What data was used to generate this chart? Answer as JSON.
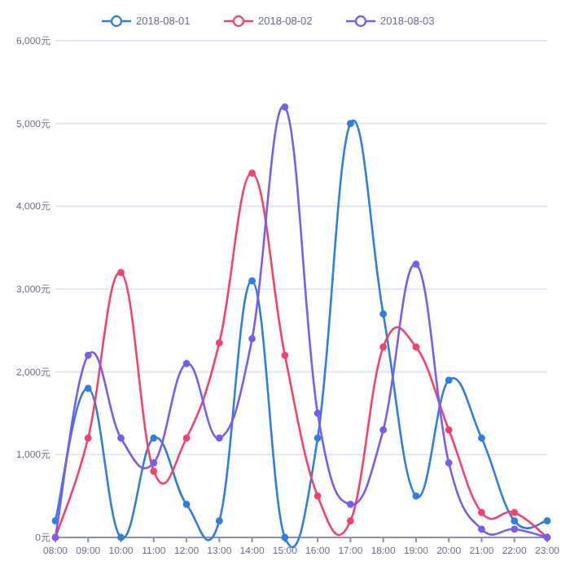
{
  "chart_data": {
    "type": "line",
    "categories": [
      "08:00",
      "09:00",
      "10:00",
      "11:00",
      "12:00",
      "13:00",
      "14:00",
      "15:00",
      "16:00",
      "17:00",
      "18:00",
      "19:00",
      "20:00",
      "21:00",
      "22:00",
      "23:00"
    ],
    "series": [
      {
        "name": "2018-08-01",
        "color": "#2f7fe0",
        "values": [
          200,
          1800,
          0,
          1200,
          400,
          200,
          3100,
          0,
          1200,
          5000,
          2700,
          500,
          1900,
          1200,
          200,
          200
        ]
      },
      {
        "name": "2018-08-02",
        "color": "#f5426c",
        "values": [
          0,
          1200,
          3200,
          800,
          1200,
          2350,
          4400,
          2200,
          500,
          200,
          2300,
          2300,
          1300,
          300,
          300,
          0
        ]
      },
      {
        "name": "2018-08-03",
        "color": "#7a5cf0",
        "values": [
          0,
          2200,
          1200,
          900,
          2100,
          1200,
          2400,
          5200,
          1500,
          400,
          1300,
          3300,
          900,
          100,
          100,
          0
        ]
      }
    ],
    "ylim": [
      0,
      6000
    ],
    "yticks": [
      {
        "value": 0,
        "label": "0元"
      },
      {
        "value": 1000,
        "label": "1,000元"
      },
      {
        "value": 2000,
        "label": "2,000元"
      },
      {
        "value": 3000,
        "label": "3,000元"
      },
      {
        "value": 4000,
        "label": "4,000元"
      },
      {
        "value": 5000,
        "label": "5,000元"
      },
      {
        "value": 6000,
        "label": "6,000元"
      }
    ],
    "grid": "y",
    "legend": "top",
    "marker": "circle",
    "line_style": "solid"
  }
}
